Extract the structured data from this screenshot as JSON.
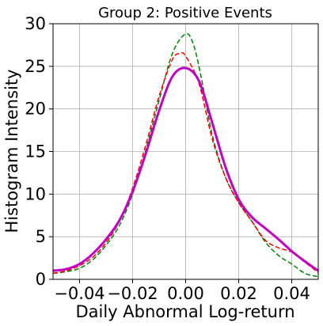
{
  "chart_data": {
    "type": "line",
    "title": "Group 2: Positive Events",
    "xlabel": "Daily Abnormal Log-return",
    "ylabel": "Histogram Intensity",
    "xlim": [
      -0.05,
      0.05
    ],
    "ylim": [
      0,
      30
    ],
    "grid": true,
    "xticks": [
      -0.04,
      -0.02,
      0.0,
      0.02,
      0.04
    ],
    "xtick_labels": [
      "−0.04",
      "−0.02",
      "0.00",
      "0.02",
      "0.04"
    ],
    "yticks": [
      0,
      5,
      10,
      15,
      20,
      25,
      30
    ],
    "ytick_labels": [
      "0",
      "5",
      "10",
      "15",
      "20",
      "25",
      "30"
    ],
    "series": [
      {
        "color": "#008000",
        "style": "dashed",
        "x": [
          -0.05,
          -0.045,
          -0.04,
          -0.035,
          -0.03,
          -0.025,
          -0.02,
          -0.015,
          -0.01,
          -0.005,
          0.0,
          0.003,
          0.006,
          0.01,
          0.015,
          0.02,
          0.025,
          0.03,
          0.035,
          0.04,
          0.045,
          0.05
        ],
        "y": [
          0.7,
          0.9,
          1.3,
          2.3,
          4.0,
          6.3,
          10.0,
          15.2,
          21.0,
          26.5,
          28.8,
          27.5,
          23.5,
          17.0,
          12.0,
          9.0,
          6.8,
          4.4,
          2.8,
          1.8,
          0.7,
          0.3
        ]
      },
      {
        "color": "#ff0000",
        "style": "dashed",
        "x": [
          -0.05,
          -0.045,
          -0.04,
          -0.035,
          -0.03,
          -0.025,
          -0.02,
          -0.015,
          -0.01,
          -0.005,
          -0.002,
          0.0,
          0.005,
          0.01,
          0.015,
          0.02,
          0.025,
          0.03,
          0.035,
          0.04,
          0.045,
          0.05
        ],
        "y": [
          0.7,
          1.0,
          1.6,
          2.6,
          4.3,
          6.8,
          10.7,
          15.8,
          21.5,
          25.8,
          26.5,
          26.2,
          23.0,
          16.5,
          12.0,
          9.0,
          6.8,
          4.6,
          3.7,
          3.2,
          2.0,
          0.8
        ]
      },
      {
        "color": "#c000c0",
        "style": "solid",
        "x": [
          -0.05,
          -0.045,
          -0.04,
          -0.035,
          -0.03,
          -0.025,
          -0.02,
          -0.015,
          -0.01,
          -0.005,
          0.0,
          0.005,
          0.01,
          0.015,
          0.02,
          0.025,
          0.03,
          0.035,
          0.04,
          0.045,
          0.05
        ],
        "y": [
          1.0,
          1.2,
          1.8,
          3.0,
          4.7,
          6.9,
          10.3,
          14.8,
          19.8,
          23.8,
          24.8,
          23.3,
          18.4,
          13.2,
          9.4,
          7.3,
          6.0,
          4.7,
          3.3,
          2.1,
          1.0
        ]
      }
    ]
  }
}
